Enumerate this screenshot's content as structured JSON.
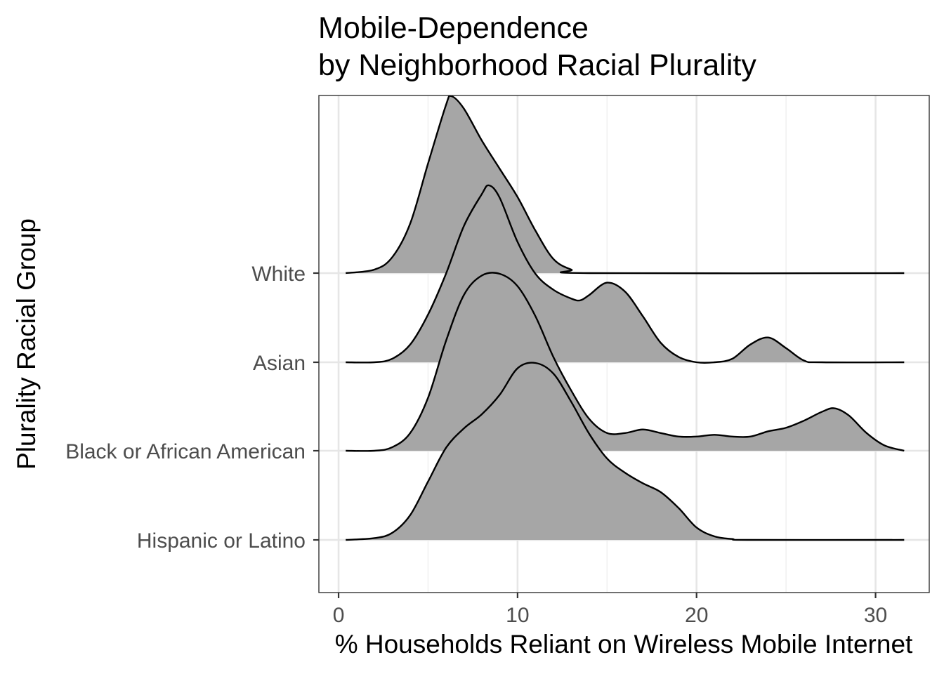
{
  "chart_data": {
    "type": "ridgeline",
    "title_lines": [
      "Mobile-Dependence",
      "by Neighborhood Racial Plurality"
    ],
    "xlabel": "% Households Reliant on Wireless Mobile Internet",
    "ylabel": "Plurality Racial Group",
    "xlim": [
      -1.1,
      33
    ],
    "xticks": [
      0,
      10,
      20,
      30
    ],
    "x_tick_labels": [
      "0",
      "10",
      "20",
      "30"
    ],
    "x_range": [
      0.4,
      31.6
    ],
    "grid": true,
    "fill_color": "#a6a6a6",
    "line_color": "#000000",
    "categories": [
      "Hispanic or Latino",
      "Black or African American",
      "Asian",
      "White"
    ],
    "series": [
      {
        "name": "Hispanic or Latino",
        "points": [
          [
            0.4,
            0
          ],
          [
            2,
            0.01
          ],
          [
            3,
            0.04
          ],
          [
            4,
            0.14
          ],
          [
            5,
            0.33
          ],
          [
            6,
            0.52
          ],
          [
            7,
            0.63
          ],
          [
            8,
            0.71
          ],
          [
            9,
            0.82
          ],
          [
            10,
            0.97
          ],
          [
            11,
            1.0
          ],
          [
            12,
            0.94
          ],
          [
            13,
            0.78
          ],
          [
            14,
            0.6
          ],
          [
            15,
            0.46
          ],
          [
            16,
            0.38
          ],
          [
            17,
            0.32
          ],
          [
            18,
            0.27
          ],
          [
            19,
            0.18
          ],
          [
            20,
            0.07
          ],
          [
            21,
            0.02
          ],
          [
            22,
            0.005
          ],
          [
            23,
            0
          ],
          [
            31.6,
            0
          ]
        ]
      },
      {
        "name": "Black or African American",
        "points": [
          [
            0.4,
            0
          ],
          [
            2,
            0
          ],
          [
            3,
            0.02
          ],
          [
            4,
            0.1
          ],
          [
            5,
            0.3
          ],
          [
            6,
            0.62
          ],
          [
            7,
            0.88
          ],
          [
            8,
            0.99
          ],
          [
            9,
            1.0
          ],
          [
            10,
            0.93
          ],
          [
            11,
            0.76
          ],
          [
            12,
            0.53
          ],
          [
            13,
            0.34
          ],
          [
            14,
            0.18
          ],
          [
            15,
            0.1
          ],
          [
            16,
            0.1
          ],
          [
            17,
            0.12
          ],
          [
            18,
            0.1
          ],
          [
            19,
            0.08
          ],
          [
            20,
            0.08
          ],
          [
            21,
            0.09
          ],
          [
            22,
            0.08
          ],
          [
            23,
            0.08
          ],
          [
            24,
            0.11
          ],
          [
            25,
            0.13
          ],
          [
            26,
            0.17
          ],
          [
            27,
            0.22
          ],
          [
            27.7,
            0.24
          ],
          [
            28.5,
            0.2
          ],
          [
            29.5,
            0.1
          ],
          [
            30.5,
            0.03
          ],
          [
            31.6,
            0
          ]
        ]
      },
      {
        "name": "Asian",
        "points": [
          [
            0.4,
            0
          ],
          [
            2,
            0
          ],
          [
            3,
            0.02
          ],
          [
            4,
            0.1
          ],
          [
            5,
            0.27
          ],
          [
            6,
            0.5
          ],
          [
            7,
            0.77
          ],
          [
            8,
            0.95
          ],
          [
            8.4,
            1.0
          ],
          [
            9,
            0.93
          ],
          [
            10,
            0.68
          ],
          [
            11,
            0.5
          ],
          [
            12,
            0.41
          ],
          [
            13,
            0.36
          ],
          [
            13.5,
            0.35
          ],
          [
            14,
            0.38
          ],
          [
            15,
            0.45
          ],
          [
            16,
            0.4
          ],
          [
            17,
            0.26
          ],
          [
            18,
            0.11
          ],
          [
            19,
            0.03
          ],
          [
            20,
            0
          ],
          [
            21,
            0
          ],
          [
            22,
            0.02
          ],
          [
            23,
            0.1
          ],
          [
            24,
            0.14
          ],
          [
            25,
            0.08
          ],
          [
            26,
            0.01
          ],
          [
            27,
            0
          ],
          [
            31.6,
            0
          ]
        ]
      },
      {
        "name": "White",
        "points": [
          [
            0.4,
            0
          ],
          [
            2,
            0.02
          ],
          [
            3,
            0.09
          ],
          [
            4,
            0.28
          ],
          [
            5,
            0.62
          ],
          [
            6,
            0.95
          ],
          [
            6.3,
            1.0
          ],
          [
            7,
            0.93
          ],
          [
            8,
            0.75
          ],
          [
            9,
            0.59
          ],
          [
            10,
            0.43
          ],
          [
            11,
            0.24
          ],
          [
            12,
            0.08
          ],
          [
            13,
            0.02
          ],
          [
            14,
            0
          ],
          [
            31.6,
            0
          ]
        ]
      }
    ]
  }
}
